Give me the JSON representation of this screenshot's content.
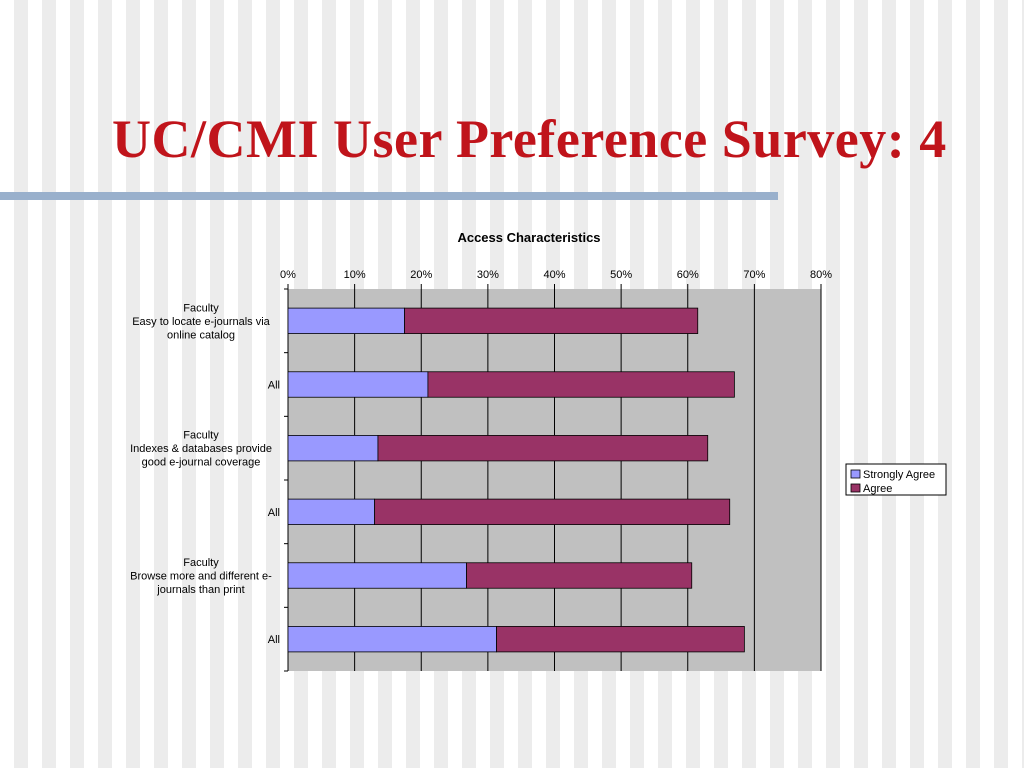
{
  "slide": {
    "title": "UC/CMI User Preference Survey: 4"
  },
  "colors": {
    "title": "#c0141b",
    "rule": "#99b0cc",
    "plot_bg": "#c0c0c0",
    "strongly_agree": "#9999ff",
    "agree": "#993366"
  },
  "chart_data": {
    "type": "bar",
    "orientation": "horizontal",
    "stacked": true,
    "title": "Access Characteristics",
    "xlim": [
      0,
      0.8
    ],
    "x_ticks": [
      "0%",
      "10%",
      "20%",
      "30%",
      "40%",
      "50%",
      "60%",
      "70%",
      "80%"
    ],
    "x_axis_position": "top",
    "grid": true,
    "legend_position": "right",
    "categories": [
      [
        "Faculty",
        "Easy to locate e-journals via",
        "online catalog"
      ],
      [
        "All"
      ],
      [
        "Faculty",
        "Indexes & databases provide",
        "good e-journal coverage"
      ],
      [
        "All"
      ],
      [
        "Faculty",
        "Browse more and different e-",
        "journals than print"
      ],
      [
        "All"
      ]
    ],
    "series": [
      {
        "name": "Strongly Agree",
        "color": "#9999ff",
        "values": [
          0.175,
          0.21,
          0.135,
          0.13,
          0.268,
          0.313
        ]
      },
      {
        "name": "Agree",
        "color": "#993366",
        "values": [
          0.44,
          0.46,
          0.495,
          0.533,
          0.338,
          0.372
        ]
      }
    ]
  }
}
